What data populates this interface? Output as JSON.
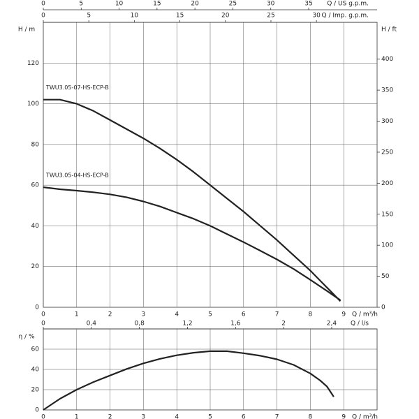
{
  "chart_data": [
    {
      "type": "line",
      "x_label": "Q / m³/h",
      "y_label": "H / m",
      "y2_label": "H / ft",
      "x2_label": "Q / US g.p.m.",
      "x3_label": "Q / Imp. g.p.m.",
      "xlim": [
        0,
        10
      ],
      "xticks": [
        0,
        1,
        2,
        3,
        4,
        5,
        6,
        7,
        8,
        9
      ],
      "x2lim": [
        0,
        44.03
      ],
      "x2ticks": [
        0,
        5,
        10,
        15,
        20,
        25,
        30,
        35
      ],
      "x3lim": [
        0,
        36.66
      ],
      "x3ticks": [
        0,
        5,
        10,
        15,
        20,
        25,
        30
      ],
      "ylim": [
        0,
        140
      ],
      "yticks": [
        0,
        20,
        40,
        60,
        80,
        100,
        120
      ],
      "y2lim": [
        0,
        459.3
      ],
      "y2ticks": [
        0,
        50,
        100,
        150,
        200,
        250,
        300,
        350,
        400
      ],
      "grid": true,
      "series": [
        {
          "name": "TWU3.05-07-HS-ECP-B",
          "color": "#222222",
          "x": [
            0,
            0.5,
            1,
            1.5,
            2,
            2.5,
            3,
            3.5,
            4,
            4.5,
            5,
            5.5,
            6,
            6.5,
            7,
            7.5,
            8,
            8.3,
            8.6,
            8.9
          ],
          "values": [
            102,
            102,
            100,
            96.5,
            92,
            87.5,
            83,
            78,
            72.5,
            66.5,
            60,
            53.5,
            47,
            40,
            33,
            25.5,
            18,
            13,
            8,
            3
          ]
        },
        {
          "name": "TWU3.05-04-HS-ECP-B",
          "color": "#222222",
          "x": [
            0,
            0.5,
            1,
            1.5,
            2,
            2.5,
            3,
            3.5,
            4,
            4.5,
            5,
            5.5,
            6,
            6.5,
            7,
            7.5,
            8,
            8.5,
            8.9
          ],
          "values": [
            59,
            58,
            57.3,
            56.5,
            55.5,
            54,
            52,
            49.5,
            46.5,
            43.5,
            40,
            36,
            32,
            27.8,
            23.5,
            18.8,
            13.5,
            8,
            3.5
          ]
        }
      ]
    },
    {
      "type": "line",
      "x_label": "Q / m³/h",
      "y_label": "η / %",
      "x2_label": "Q / l/s",
      "xlim": [
        0,
        10
      ],
      "xticks": [
        0,
        1,
        2,
        3,
        4,
        5,
        6,
        7,
        8,
        9
      ],
      "x2lim": [
        0,
        2.778
      ],
      "x2ticks": [
        0,
        {
          "value": 0.4,
          "label": "0,4"
        },
        {
          "value": 0.8,
          "label": "0,8"
        },
        {
          "value": 1.2,
          "label": "1,2"
        },
        {
          "value": 1.6,
          "label": "1,6"
        },
        2,
        {
          "value": 2.4,
          "label": "2,4"
        }
      ],
      "ylim": [
        0,
        80
      ],
      "yticks": [
        0,
        20,
        40,
        60
      ],
      "grid": true,
      "series": [
        {
          "color": "#222222",
          "x": [
            0,
            0.5,
            1,
            1.5,
            2,
            2.5,
            3,
            3.5,
            4,
            4.5,
            5,
            5.5,
            6,
            6.5,
            7,
            7.5,
            8,
            8.3,
            8.5,
            8.7
          ],
          "values": [
            0,
            11,
            20,
            27.5,
            34,
            40.5,
            46,
            50.5,
            54,
            56.5,
            58,
            58,
            56,
            53.5,
            50,
            44.5,
            36,
            29,
            23,
            13
          ]
        }
      ]
    }
  ]
}
